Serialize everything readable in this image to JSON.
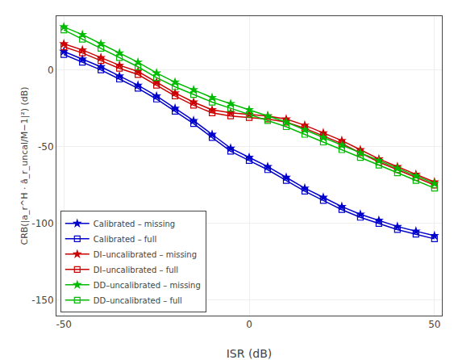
{
  "chart_data": {
    "type": "line",
    "x": [
      -50,
      -45,
      -40,
      -35,
      -30,
      -25,
      -20,
      -15,
      -10,
      -5,
      0,
      5,
      10,
      15,
      20,
      25,
      30,
      35,
      40,
      45,
      50
    ],
    "series": [
      {
        "name": "Calibrated – missing",
        "color": "#0000cc",
        "marker": "star",
        "values": [
          12,
          7,
          2,
          -4,
          -10,
          -17,
          -25,
          -33,
          -42,
          -51,
          -57,
          -63,
          -70,
          -77,
          -83,
          -89,
          -94,
          -98,
          -102,
          -105,
          -108
        ]
      },
      {
        "name": "Calibrated – full",
        "color": "#0000cc",
        "marker": "square",
        "values": [
          10,
          5,
          0,
          -6,
          -12,
          -19,
          -27,
          -35,
          -44,
          -53,
          -59,
          -65,
          -72,
          -79,
          -85,
          -91,
          -96,
          -100,
          -104,
          -107,
          -110
        ]
      },
      {
        "name": "DI–uncalibrated – missing",
        "color": "#cc0000",
        "marker": "star",
        "values": [
          17,
          13,
          8,
          3,
          -1,
          -8,
          -15,
          -21,
          -26,
          -28,
          -29,
          -30,
          -32,
          -36,
          -41,
          -46,
          -52,
          -58,
          -63,
          -68,
          -73
        ]
      },
      {
        "name": "DI–uncalibrated – full",
        "color": "#cc0000",
        "marker": "square",
        "values": [
          15,
          11,
          6,
          1,
          -3,
          -10,
          -17,
          -23,
          -28,
          -30,
          -31,
          -32,
          -34,
          -38,
          -43,
          -48,
          -54,
          -60,
          -65,
          -70,
          -75
        ]
      },
      {
        "name": "DD–uncalibrated – missing",
        "color": "#00bb00",
        "marker": "star",
        "values": [
          28,
          23,
          17,
          11,
          5,
          -2,
          -8,
          -13,
          -18,
          -22,
          -26,
          -30,
          -34,
          -39,
          -44,
          -49,
          -54,
          -59,
          -64,
          -69,
          -74
        ]
      },
      {
        "name": "DD–uncalibrated – full",
        "color": "#00bb00",
        "marker": "square",
        "values": [
          26,
          20,
          14,
          8,
          2,
          -5,
          -11,
          -16,
          -21,
          -25,
          -29,
          -33,
          -37,
          -42,
          -47,
          -52,
          -57,
          -62,
          -67,
          -72,
          -77
        ]
      }
    ],
    "xlabel": "ISR (dB)",
    "ylabel": "CRB(|a_r^H · â_r_uncal/M−1|²) (dB)",
    "xlim": [
      -52,
      52
    ],
    "ylim": [
      -160,
      35
    ],
    "xticks": [
      -50,
      0,
      50
    ],
    "yticks": [
      -150,
      -100,
      -50,
      0
    ],
    "grid": true,
    "legend": "lower left"
  }
}
